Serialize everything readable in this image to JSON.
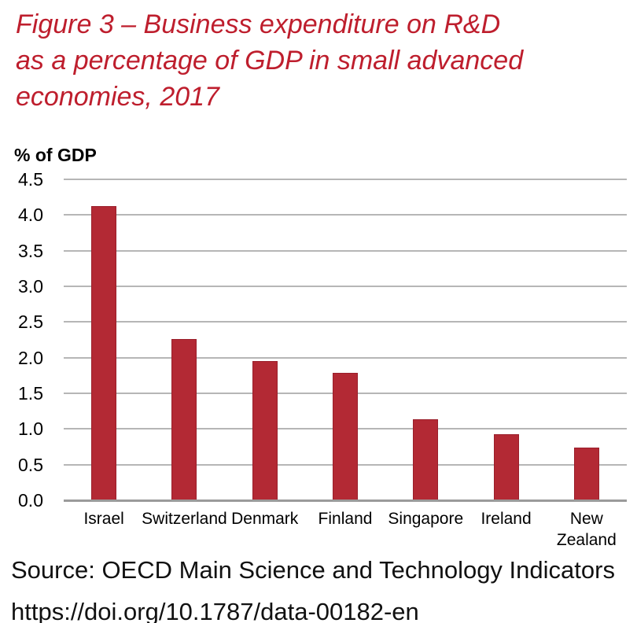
{
  "figure": {
    "title_lines": [
      "Figure 3 – Business expenditure on R&D",
      "as a percentage of GDP in small advanced",
      "economies, 2017"
    ],
    "title_color": "#be1e2d"
  },
  "chart_data": {
    "type": "bar",
    "title": "Figure 3 – Business expenditure on R&D as a percentage of GDP in small advanced economies, 2017",
    "categories": [
      "Israel",
      "Switzerland",
      "Denmark",
      "Finland",
      "Singapore",
      "Ireland",
      "New Zealand"
    ],
    "values": [
      4.13,
      2.26,
      1.95,
      1.79,
      1.14,
      0.93,
      0.74
    ],
    "xlabel": "",
    "ylabel": "% of GDP",
    "ylim": [
      0,
      4.5
    ],
    "ytick_step": 0.5,
    "y_tick_labels": [
      "0.0",
      "0.5",
      "1.0",
      "1.5",
      "2.0",
      "2.5",
      "3.0",
      "3.5",
      "4.0",
      "4.5"
    ],
    "grid": true,
    "legend_position": "none",
    "bar_color": "#b32934",
    "bar_border_color": "#9a1f2b",
    "gridline_color": "#b6b6b6",
    "axis_line_color": "#9b9b9b"
  },
  "source": {
    "line1": "Source: OECD Main Science and Technology Indicators",
    "line2": "https://doi.org/10.1787/data-00182-en"
  }
}
